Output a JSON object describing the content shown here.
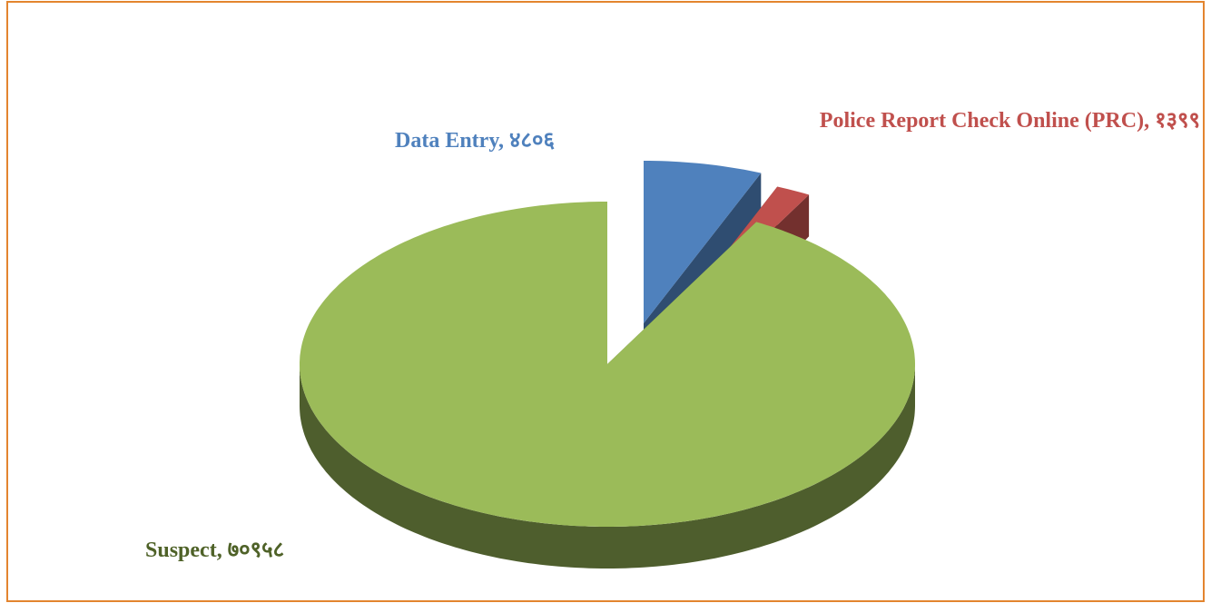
{
  "chart_data": {
    "type": "pie",
    "categories": [
      "Data Entry",
      "Police Report Check Online (PRC)",
      "Suspect"
    ],
    "values": [
      4806,
      1399,
      70958
    ],
    "value_labels": [
      "४८०६",
      "१३९९",
      "७०९५८"
    ],
    "label_separator": ", ",
    "colors": [
      "#4f81bd",
      "#c0504d",
      "#9bbb59"
    ],
    "label_colors": [
      "#4f81bd",
      "#c0504d",
      "#4f6228"
    ],
    "exploded": [
      true,
      true,
      false
    ]
  }
}
